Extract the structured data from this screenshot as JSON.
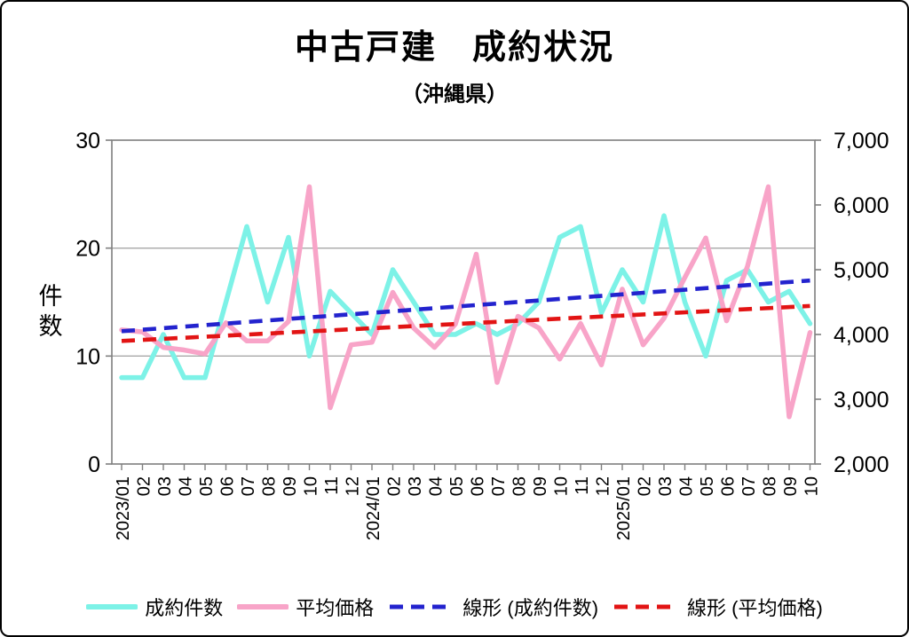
{
  "window": {
    "title": "中古戸建　成約状況",
    "subtitle": "（沖縄県）"
  },
  "chart_data": {
    "type": "line",
    "title": "中古戸建　成約状況",
    "subtitle": "（沖縄県）",
    "left_axis": {
      "label": "件数",
      "min": 0,
      "max": 30,
      "ticks": [
        {
          "value": 0,
          "label": "0"
        },
        {
          "value": 10,
          "label": "10"
        },
        {
          "value": 20,
          "label": "20"
        },
        {
          "value": 30,
          "label": "30"
        }
      ],
      "grid_values": [
        10,
        20
      ]
    },
    "right_axis": {
      "min": 2000,
      "max": 7000,
      "ticks": [
        {
          "value": 2000,
          "label": "2,000"
        },
        {
          "value": 3000,
          "label": "3,000"
        },
        {
          "value": 4000,
          "label": "4,000"
        },
        {
          "value": 5000,
          "label": "5,000"
        },
        {
          "value": 6000,
          "label": "6,000"
        },
        {
          "value": 7000,
          "label": "7,000"
        }
      ]
    },
    "x_labels": [
      "2023/01",
      "02",
      "03",
      "04",
      "05",
      "06",
      "07",
      "08",
      "09",
      "10",
      "11",
      "12",
      "2024/01",
      "02",
      "03",
      "04",
      "05",
      "06",
      "07",
      "08",
      "09",
      "10",
      "11",
      "12",
      "2025/01",
      "02",
      "03",
      "04",
      "05",
      "06",
      "07",
      "08",
      "09",
      "10"
    ],
    "series": [
      {
        "name": "成約件数",
        "axis": "left",
        "style": "solid",
        "color": "#7DF2E7",
        "values": [
          8,
          8,
          12,
          8,
          8,
          15,
          22,
          15,
          21,
          10,
          16,
          14,
          12,
          18,
          15,
          12,
          12,
          13,
          12,
          13,
          15,
          21,
          22,
          14,
          18,
          15,
          23,
          15,
          10,
          17,
          18,
          15,
          16,
          13
        ]
      },
      {
        "name": "平均価格",
        "axis": "right",
        "style": "solid",
        "color": "#F8A4C8",
        "values": [
          4070,
          4040,
          3800,
          3760,
          3700,
          4180,
          3900,
          3900,
          4200,
          6280,
          2870,
          3840,
          3880,
          4650,
          4100,
          3800,
          4160,
          5240,
          3260,
          4280,
          4100,
          3620,
          4170,
          3530,
          4700,
          3840,
          4250,
          4880,
          5490,
          4210,
          5050,
          6280,
          2730,
          4030
        ]
      },
      {
        "name": "線形 (成約件数)",
        "axis": "left",
        "style": "dashed",
        "color": "#2323CE",
        "trend_start": 12.3,
        "trend_end": 17.0
      },
      {
        "name": "線形 (平均価格)",
        "axis": "right",
        "style": "dashed",
        "color": "#E21414",
        "trend_start": 3900,
        "trend_end": 4440
      }
    ],
    "colors": {
      "grid": "#a8a8a8",
      "frame": "#7f7f7f",
      "tick": "#7f7f7f",
      "text": "#000000"
    }
  }
}
